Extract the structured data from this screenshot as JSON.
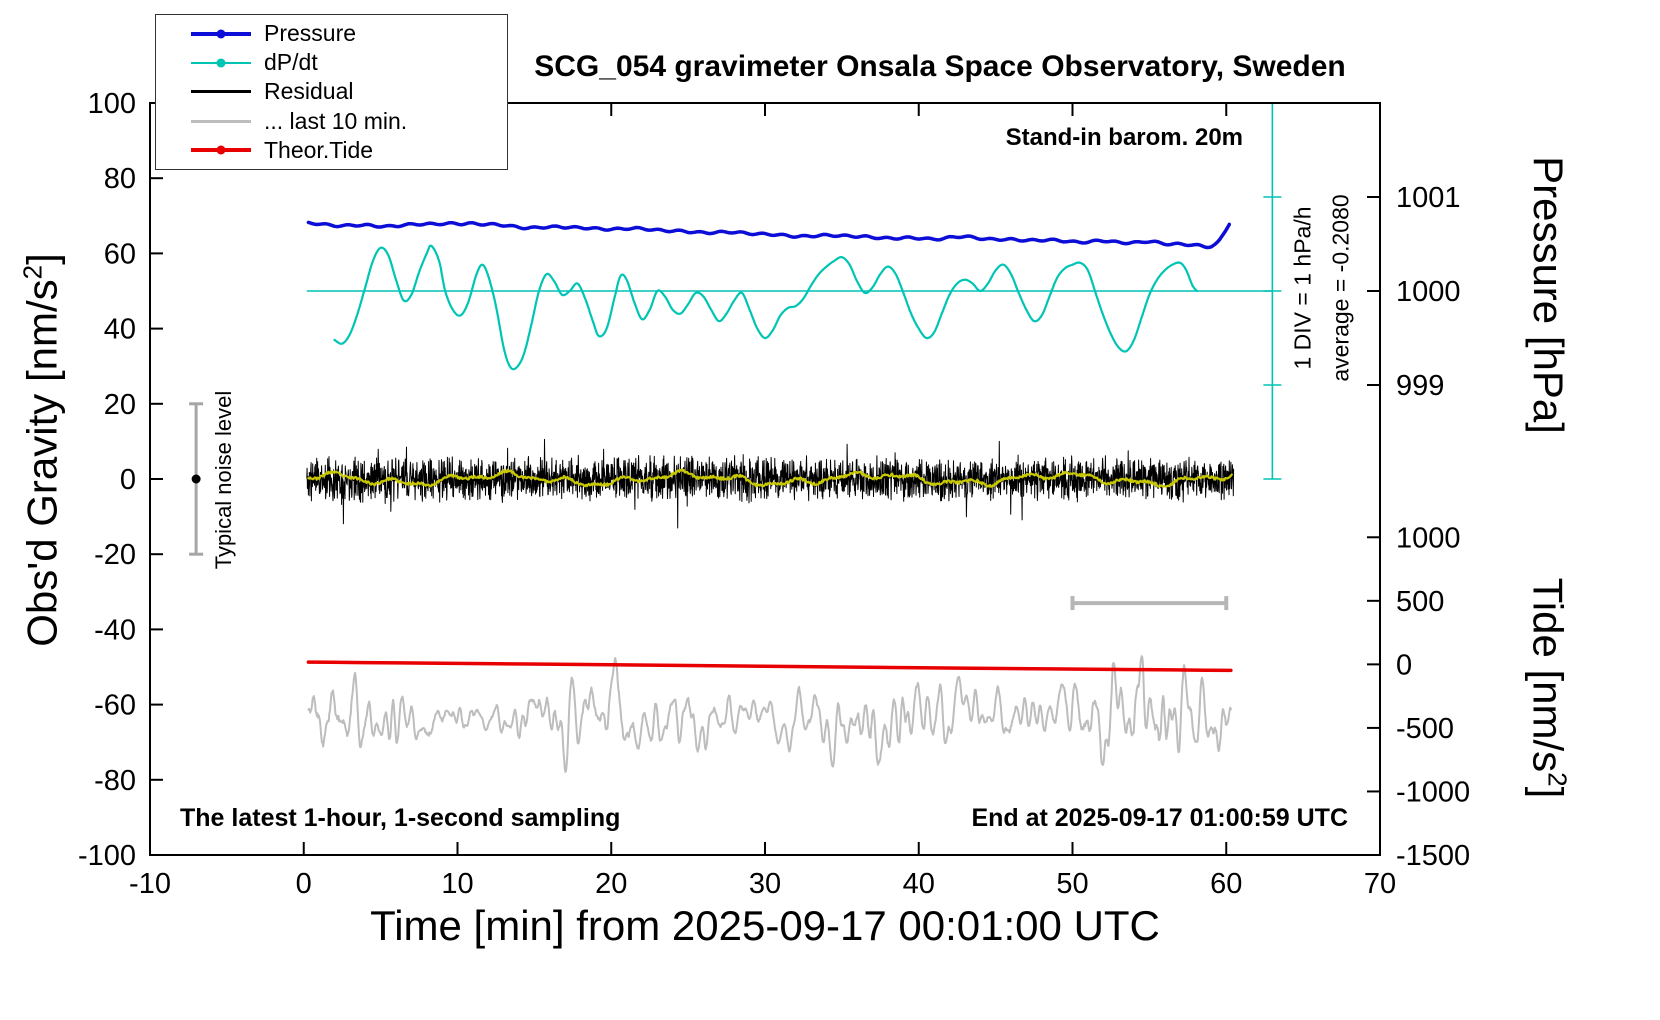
{
  "title": "SCG_054 gravimeter Onsala Space Observatory, Sweden",
  "annotations": {
    "barom": "Stand-in barom. 20m",
    "div": "1 DIV = 1 hPa/h",
    "average": "average = -0.2080",
    "noise_label": "Typical noise level",
    "sampling": "The latest 1-hour, 1-second sampling",
    "end": "End at 2025-09-17 01:00:59 UTC"
  },
  "legend": {
    "items": [
      {
        "label": "Pressure",
        "color": "#0d0dd8",
        "dot": true,
        "lw": 3.5
      },
      {
        "label": "dP/dt",
        "color": "#00c4b4",
        "dot": true,
        "lw": 2.2
      },
      {
        "label": "Residual",
        "color": "#000000",
        "dot": false,
        "lw": 3
      },
      {
        "label": "... last 10 min.",
        "color": "#bdbdbd",
        "dot": false,
        "lw": 3
      },
      {
        "label": "Theor.Tide",
        "color": "#e80000",
        "dot": true,
        "lw": 3.5
      }
    ]
  },
  "axes": {
    "x": {
      "label": "Time [min] from 2025-09-17 00:01:00 UTC",
      "min": -10,
      "max": 70,
      "ticks": [
        -10,
        0,
        10,
        20,
        30,
        40,
        50,
        60,
        70
      ]
    },
    "y_left": {
      "label_pre": "Obs'd Gravity [nm/s",
      "label_sup": "2",
      "label_post": "]",
      "min": -100,
      "max": 100,
      "ticks": [
        -100,
        -80,
        -60,
        -40,
        -20,
        0,
        20,
        40,
        60,
        80,
        100
      ]
    },
    "y_pressure": {
      "label": "Pressure [hPa]",
      "ticks": [
        {
          "value": "1001",
          "g": 75
        },
        {
          "value": "1000",
          "g": 50
        },
        {
          "value": "999",
          "g": 25
        }
      ]
    },
    "y_tide": {
      "label_pre": "Tide [nm/s",
      "label_sup": "2",
      "label_post": "]",
      "ticks": [
        {
          "value": "1000",
          "g": -15.5
        },
        {
          "value": "500",
          "g": -32.4
        },
        {
          "value": "0",
          "g": -49.3
        },
        {
          "value": "-500",
          "g": -66.2
        },
        {
          "value": "-1000",
          "g": -83.1
        },
        {
          "value": "-1500",
          "g": -100
        }
      ]
    }
  },
  "chart_data": {
    "type": "line",
    "xlim": [
      -10,
      70
    ],
    "ylim_left": [
      -100,
      100
    ],
    "grid": false,
    "pressure_axis_mapping": {
      "hpa_at_g50": 1000,
      "left_units_per_hpa": 25
    },
    "tide_axis_mapping": {
      "tide_zero_at_g": -49.3,
      "g_per_tide_unit": 0.0338
    },
    "reference_line": {
      "y": 50,
      "x0": 0.2,
      "x1": 63,
      "color": "#00c4b4"
    },
    "dpdt_scale_bar": {
      "x": 63,
      "g0": 0,
      "g1": 100,
      "tick_step": 25,
      "color": "#00c4b4"
    },
    "noise_errorbar": {
      "x": -7,
      "y0": -20,
      "y1": 20,
      "dot_y": 0,
      "color": "#a6a6a6"
    },
    "ten_min_bar": {
      "x0": 50,
      "x1": 60,
      "y": -33,
      "color": "#b6b6b6"
    },
    "series": [
      {
        "name": "Pressure",
        "color": "#0d0dd8",
        "width": 3.5,
        "kind": "spline",
        "wiggle": {
          "amp": 0.25,
          "period": 1.35
        },
        "points": [
          [
            0.3,
            68.0
          ],
          [
            2,
            67.5
          ],
          [
            4,
            67.4
          ],
          [
            6,
            67.3
          ],
          [
            8,
            67.9
          ],
          [
            10,
            67.8
          ],
          [
            11,
            68.0
          ],
          [
            13,
            67.4
          ],
          [
            15,
            66.8
          ],
          [
            17,
            67.1
          ],
          [
            19,
            66.5
          ],
          [
            21,
            66.6
          ],
          [
            23,
            66.3
          ],
          [
            25,
            65.7
          ],
          [
            27,
            65.6
          ],
          [
            29,
            65.4
          ],
          [
            31,
            64.8
          ],
          [
            33,
            64.6
          ],
          [
            35,
            64.8
          ],
          [
            37,
            64.2
          ],
          [
            39,
            64.1
          ],
          [
            41,
            63.9
          ],
          [
            43,
            64.4
          ],
          [
            45,
            63.7
          ],
          [
            47,
            63.6
          ],
          [
            49,
            63.4
          ],
          [
            51,
            63.0
          ],
          [
            52,
            63.3
          ],
          [
            54,
            62.8
          ],
          [
            55,
            63.1
          ],
          [
            56,
            62.7
          ],
          [
            57,
            62.4
          ],
          [
            58,
            62.1
          ],
          [
            58.8,
            61.9
          ],
          [
            59.4,
            62.8
          ],
          [
            59.8,
            65.0
          ],
          [
            60.2,
            67.9
          ]
        ]
      },
      {
        "name": "dP/dt",
        "color": "#00c4b4",
        "width": 2.2,
        "kind": "spline",
        "points": [
          [
            2,
            37
          ],
          [
            2.5,
            36
          ],
          [
            3,
            38.5
          ],
          [
            3.5,
            44
          ],
          [
            4,
            51
          ],
          [
            4.5,
            58
          ],
          [
            5,
            61.5
          ],
          [
            5.5,
            59.5
          ],
          [
            6,
            53
          ],
          [
            6.5,
            47.5
          ],
          [
            7,
            49
          ],
          [
            7.5,
            55
          ],
          [
            8,
            60
          ],
          [
            8.3,
            62
          ],
          [
            8.8,
            58
          ],
          [
            9.2,
            50
          ],
          [
            9.7,
            45
          ],
          [
            10.2,
            43.5
          ],
          [
            10.7,
            47
          ],
          [
            11.2,
            54
          ],
          [
            11.6,
            57
          ],
          [
            12,
            54
          ],
          [
            12.5,
            46
          ],
          [
            13,
            35
          ],
          [
            13.4,
            30
          ],
          [
            13.8,
            29.5
          ],
          [
            14.3,
            33
          ],
          [
            14.8,
            41
          ],
          [
            15.3,
            50
          ],
          [
            15.8,
            54.5
          ],
          [
            16.3,
            52.5
          ],
          [
            16.8,
            49
          ],
          [
            17.3,
            50
          ],
          [
            17.8,
            52
          ],
          [
            18.3,
            48
          ],
          [
            18.8,
            42
          ],
          [
            19.2,
            38
          ],
          [
            19.7,
            40
          ],
          [
            20.2,
            48
          ],
          [
            20.6,
            54
          ],
          [
            21,
            53
          ],
          [
            21.5,
            47
          ],
          [
            22,
            42.5
          ],
          [
            22.5,
            45
          ],
          [
            23,
            50
          ],
          [
            23.5,
            48.5
          ],
          [
            24,
            45
          ],
          [
            24.5,
            44
          ],
          [
            25,
            46.5
          ],
          [
            25.5,
            49.5
          ],
          [
            26,
            48.5
          ],
          [
            26.5,
            45
          ],
          [
            27,
            42
          ],
          [
            27.5,
            44
          ],
          [
            28,
            47.5
          ],
          [
            28.5,
            49.5
          ],
          [
            29,
            45
          ],
          [
            29.5,
            40
          ],
          [
            30,
            37.5
          ],
          [
            30.5,
            39.5
          ],
          [
            31,
            43.5
          ],
          [
            31.5,
            45.5
          ],
          [
            32,
            46
          ],
          [
            32.5,
            48
          ],
          [
            33,
            51.5
          ],
          [
            33.5,
            54.5
          ],
          [
            34,
            56.5
          ],
          [
            34.5,
            58
          ],
          [
            35,
            59
          ],
          [
            35.5,
            57
          ],
          [
            36,
            52.5
          ],
          [
            36.5,
            49.5
          ],
          [
            37,
            51
          ],
          [
            37.5,
            54.5
          ],
          [
            38,
            56.5
          ],
          [
            38.5,
            54.5
          ],
          [
            39,
            49.5
          ],
          [
            39.5,
            44
          ],
          [
            40,
            40
          ],
          [
            40.5,
            37.5
          ],
          [
            41,
            39
          ],
          [
            41.5,
            44
          ],
          [
            42,
            49
          ],
          [
            42.5,
            52
          ],
          [
            43,
            53
          ],
          [
            43.5,
            52
          ],
          [
            44,
            50
          ],
          [
            44.5,
            52
          ],
          [
            45,
            55.5
          ],
          [
            45.5,
            57
          ],
          [
            46,
            54.5
          ],
          [
            46.5,
            49.5
          ],
          [
            47,
            45
          ],
          [
            47.5,
            42
          ],
          [
            48,
            43.5
          ],
          [
            48.5,
            48.5
          ],
          [
            49,
            53.5
          ],
          [
            49.5,
            56
          ],
          [
            50,
            57
          ],
          [
            50.5,
            57.5
          ],
          [
            51,
            55.5
          ],
          [
            51.5,
            49.5
          ],
          [
            52,
            43.5
          ],
          [
            52.5,
            38.5
          ],
          [
            53,
            35
          ],
          [
            53.5,
            34
          ],
          [
            54,
            37
          ],
          [
            54.5,
            43
          ],
          [
            55,
            49
          ],
          [
            55.5,
            53
          ],
          [
            56,
            55.5
          ],
          [
            56.5,
            57
          ],
          [
            57,
            57.5
          ],
          [
            57.4,
            55.5
          ],
          [
            57.8,
            51.5
          ],
          [
            58.1,
            50
          ]
        ]
      },
      {
        "name": "Residual",
        "color": "#000000",
        "width": 1,
        "kind": "noise",
        "params": {
          "x0": 0.2,
          "x1": 60.5,
          "dt": 0.02,
          "base": 0,
          "envelope": 6.5,
          "spike_prob": 0.02,
          "spike_amp": 6.5,
          "seed": 11
        }
      },
      {
        "name": "Residual smoothed",
        "color": "#c8c800",
        "width": 2.2,
        "kind": "mean",
        "params": {
          "x0": 0.3,
          "x1": 60.4,
          "dt": 0.06,
          "base": 0,
          "seed": 23
        }
      },
      {
        "name": "... last 10 min.",
        "color": "#bdbdbd",
        "width": 2,
        "kind": "banded",
        "params": {
          "x0": 0.3,
          "x1": 60.3,
          "dt": 0.04,
          "base": -63.2,
          "gain": 22,
          "seed": 5
        }
      },
      {
        "name": "Theor.Tide",
        "color": "#e80000",
        "width": 3.5,
        "kind": "spline",
        "points": [
          [
            0.3,
            -48.7
          ],
          [
            20,
            -49.4
          ],
          [
            40,
            -50.2
          ],
          [
            60.3,
            -50.9
          ]
        ]
      }
    ]
  }
}
